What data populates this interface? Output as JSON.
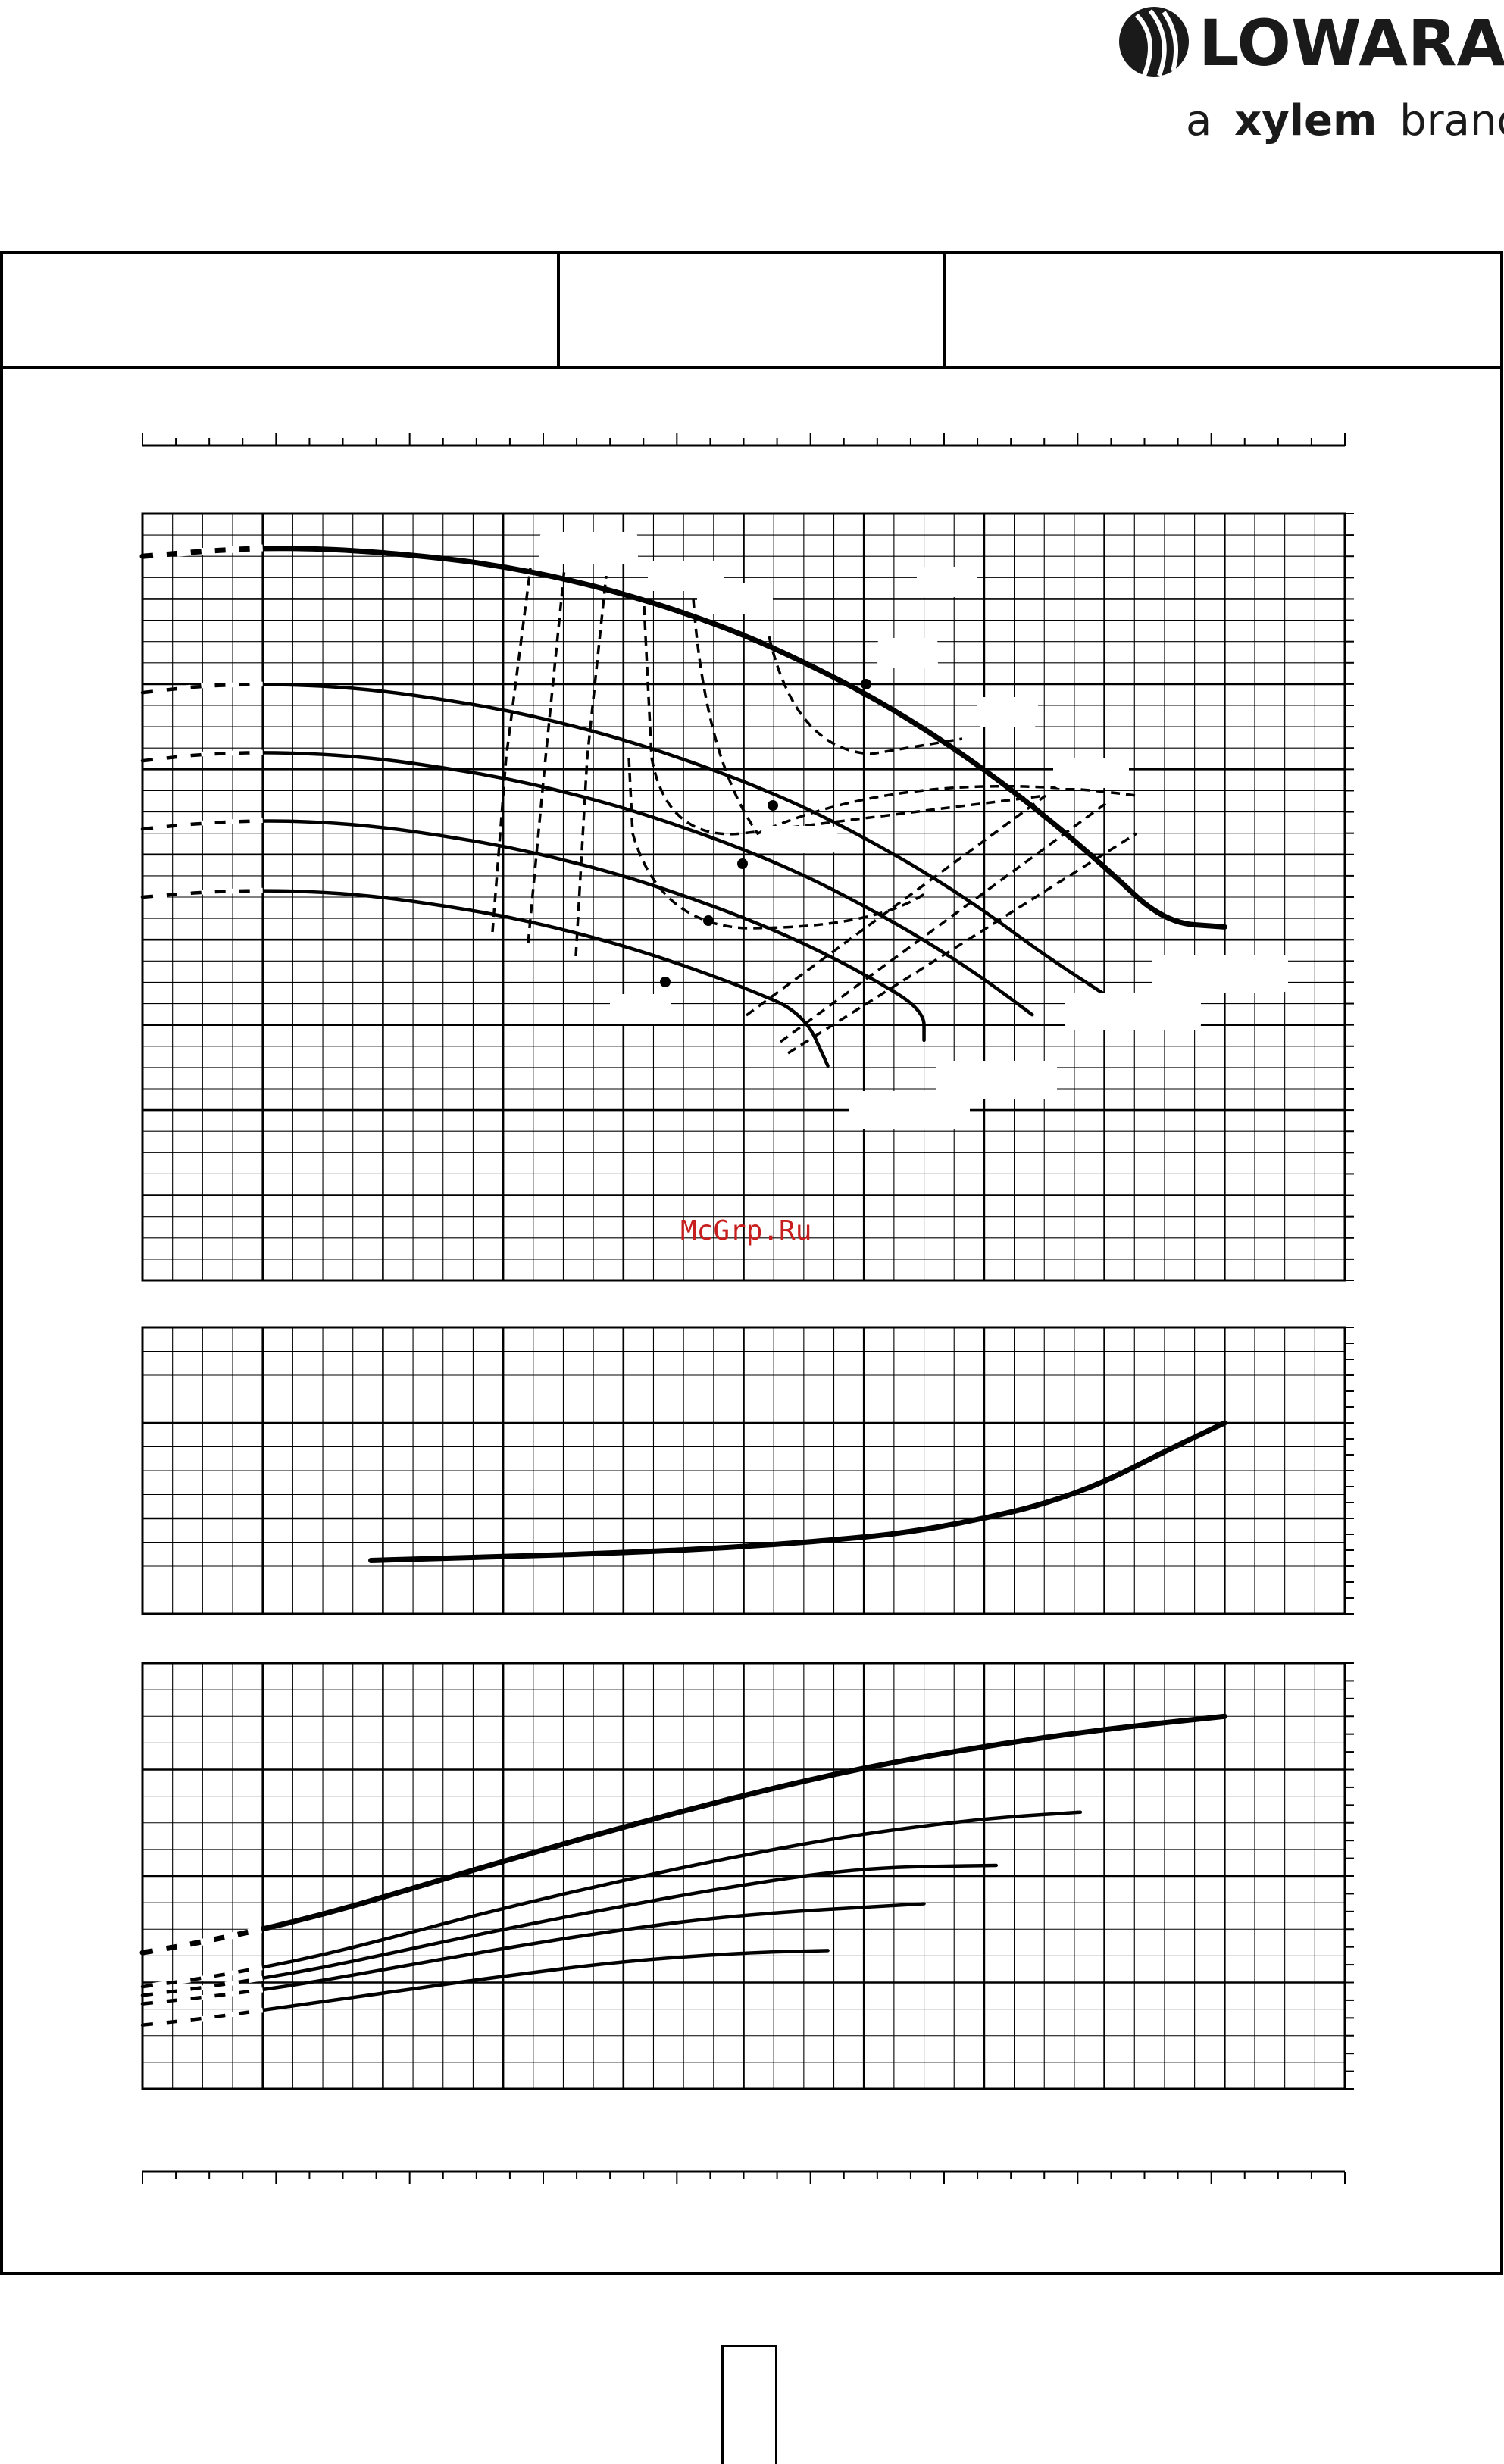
{
  "brand": {
    "name": "LOWARA",
    "tagline_prefix": "a",
    "tagline_bold": "xylem",
    "tagline_suffix": "brand"
  },
  "watermark": "McGrp.Ru",
  "colors": {
    "ink": "#000000",
    "watermark": "#c81e1e"
  },
  "chart_data": [
    {
      "type": "line",
      "panel": "head",
      "title": "",
      "xlabel": "",
      "ylabel": "",
      "xlim": [
        0,
        10
      ],
      "ylim": [
        0,
        9
      ],
      "series": [
        {
          "name": "",
          "style": "thick",
          "x": [
            0,
            0.5,
            1,
            1.7,
            2.5,
            3,
            3.5,
            4,
            4.5,
            5,
            5.5,
            6,
            6.5,
            7,
            7.5,
            8,
            8.5,
            9
          ],
          "y": [
            8.5,
            8.56,
            8.6,
            8.58,
            8.48,
            8.38,
            8.24,
            8.06,
            7.84,
            7.58,
            7.26,
            6.9,
            6.48,
            6.0,
            5.46,
            4.86,
            4.2,
            4.15
          ]
        },
        {
          "name": "",
          "style": "normal",
          "x": [
            0,
            0.5,
            1,
            1.5,
            2,
            2.5,
            3,
            3.5,
            4,
            4.5,
            5,
            5.5,
            6,
            6.5,
            7,
            7.5,
            8
          ],
          "y": [
            6.9,
            6.98,
            7.0,
            6.98,
            6.92,
            6.82,
            6.7,
            6.54,
            6.35,
            6.12,
            5.86,
            5.56,
            5.2,
            4.8,
            4.34,
            3.82,
            3.36
          ]
        },
        {
          "name": "",
          "style": "normal",
          "x": [
            0,
            0.5,
            1,
            1.5,
            2,
            2.5,
            3,
            3.5,
            4,
            4.5,
            5,
            5.5,
            6,
            6.5,
            7,
            7.4
          ],
          "y": [
            6.1,
            6.18,
            6.2,
            6.18,
            6.12,
            6.02,
            5.9,
            5.74,
            5.55,
            5.32,
            5.06,
            4.76,
            4.4,
            4.0,
            3.54,
            3.12
          ]
        },
        {
          "name": "",
          "style": "normal",
          "x": [
            0,
            0.5,
            1,
            1.5,
            2,
            2.5,
            3,
            3.5,
            4,
            4.5,
            5,
            5.5,
            6,
            6.5,
            6.5
          ],
          "y": [
            5.3,
            5.37,
            5.4,
            5.38,
            5.32,
            5.22,
            5.1,
            4.94,
            4.75,
            4.52,
            4.26,
            3.96,
            3.6,
            3.18,
            2.82
          ]
        },
        {
          "name": "",
          "style": "normal",
          "x": [
            0,
            0.5,
            1,
            1.5,
            2,
            2.5,
            3,
            3.5,
            4,
            4.5,
            5,
            5.5,
            5.7
          ],
          "y": [
            4.5,
            4.56,
            4.58,
            4.56,
            4.5,
            4.4,
            4.28,
            4.12,
            3.93,
            3.7,
            3.44,
            3.14,
            2.52
          ]
        }
      ]
    },
    {
      "type": "line",
      "panel": "npsh",
      "title": "",
      "xlabel": "",
      "ylabel": "",
      "xlim": [
        0,
        10
      ],
      "ylim": [
        0,
        3
      ],
      "series": [
        {
          "name": "",
          "style": "thick",
          "x": [
            1.9,
            3,
            4,
            5,
            6,
            6.5,
            7,
            7.5,
            8,
            8.5,
            9
          ],
          "y": [
            0.56,
            0.6,
            0.64,
            0.7,
            0.8,
            0.88,
            1.0,
            1.15,
            1.38,
            1.7,
            2.0
          ]
        }
      ]
    },
    {
      "type": "line",
      "panel": "power",
      "title": "",
      "xlabel": "",
      "ylabel": "",
      "xlim": [
        0,
        10
      ],
      "ylim": [
        0,
        4
      ],
      "series": [
        {
          "name": "",
          "style": "thick",
          "x": [
            0,
            0.5,
            1,
            1.5,
            2,
            3,
            4,
            5,
            6,
            7,
            8,
            9
          ],
          "y": [
            1.28,
            1.38,
            1.5,
            1.64,
            1.8,
            2.14,
            2.46,
            2.76,
            3.02,
            3.22,
            3.38,
            3.5
          ]
        },
        {
          "name": "",
          "style": "normal",
          "x": [
            0,
            0.5,
            1,
            1.5,
            2,
            3,
            4,
            5,
            6,
            7,
            7.8
          ],
          "y": [
            0.96,
            1.04,
            1.14,
            1.26,
            1.4,
            1.7,
            1.96,
            2.2,
            2.4,
            2.54,
            2.6
          ]
        },
        {
          "name": "",
          "style": "normal",
          "x": [
            0,
            0.5,
            1,
            1.5,
            2,
            3,
            4,
            5,
            6,
            7.1
          ],
          "y": [
            0.88,
            0.95,
            1.04,
            1.14,
            1.26,
            1.5,
            1.72,
            1.92,
            2.08,
            2.1
          ]
        },
        {
          "name": "",
          "style": "normal",
          "x": [
            0,
            0.5,
            1,
            1.5,
            2,
            3,
            4,
            5,
            6.5
          ],
          "y": [
            0.8,
            0.86,
            0.93,
            1.02,
            1.12,
            1.32,
            1.5,
            1.64,
            1.74
          ]
        },
        {
          "name": "",
          "style": "normal",
          "x": [
            0,
            0.5,
            1,
            1.5,
            2,
            3,
            4,
            5,
            5.7
          ],
          "y": [
            0.6,
            0.66,
            0.74,
            0.82,
            0.9,
            1.06,
            1.2,
            1.28,
            1.3
          ]
        }
      ]
    }
  ]
}
